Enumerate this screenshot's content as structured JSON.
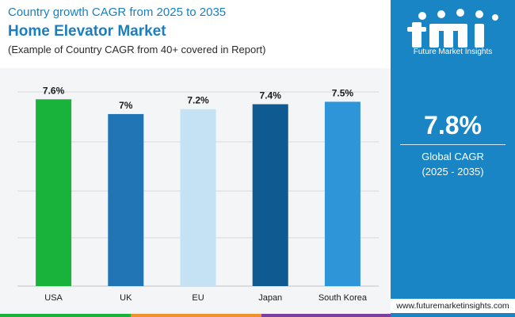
{
  "header": {
    "subtitle": "Country growth CAGR from 2025 to 2035",
    "title": "Home Elevator Market",
    "note": "(Example of Country CAGR from 40+ covered in Report)"
  },
  "side_panel": {
    "logo_text": "Future Market Insights",
    "cagr_value": "7.8%",
    "cagr_label_line1": "Global CAGR",
    "cagr_label_line2": "(2025 - 2035)"
  },
  "website": "www.futuremarketinsights.com",
  "colors": {
    "brand_blue": "#1a85c4",
    "usa": "#19b33c",
    "uk": "#2175b5",
    "eu": "#c4e2f3",
    "japan": "#0e5a91",
    "south_korea": "#2d95d8"
  },
  "chart_data": {
    "type": "bar",
    "categories": [
      "USA",
      "UK",
      "EU",
      "Japan",
      "South Korea"
    ],
    "values": [
      7.6,
      7.0,
      7.2,
      7.4,
      7.5
    ],
    "data_labels": [
      "7.6%",
      "7%",
      "7.2%",
      "7.4%",
      "7.5%"
    ],
    "bar_colors": [
      "#19b33c",
      "#2175b5",
      "#c4e2f3",
      "#0e5a91",
      "#2d95d8"
    ],
    "ylim": [
      0,
      7.9
    ],
    "grid": true
  }
}
